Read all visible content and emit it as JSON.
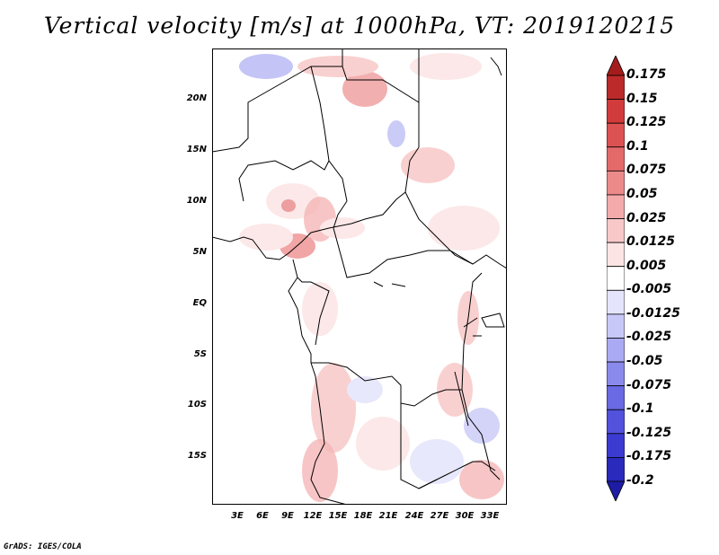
{
  "title": "Vertical velocity [m/s] at 1000hPa, VT: 2019120215",
  "credit": "GrADS: IGES/COLA",
  "lat_labels": [
    "20N",
    "15N",
    "10N",
    "5N",
    "EQ",
    "5S",
    "10S",
    "15S"
  ],
  "lon_labels": [
    "3E",
    "6E",
    "9E",
    "12E",
    "15E",
    "18E",
    "21E",
    "24E",
    "27E",
    "30E",
    "33E"
  ],
  "colorbar": {
    "labels": [
      "0.175",
      "0.15",
      "0.125",
      "0.1",
      "0.075",
      "0.05",
      "0.025",
      "0.0125",
      "0.005",
      "-0.005",
      "-0.0125",
      "-0.025",
      "-0.05",
      "-0.075",
      "-0.1",
      "-0.125",
      "-0.175",
      "-0.2"
    ],
    "colors": [
      "#a51c1c",
      "#bc2a2a",
      "#d23b3b",
      "#dc5252",
      "#e46a6a",
      "#ec8a8a",
      "#f4aaaa",
      "#f8c8c8",
      "#fce4e4",
      "#ffffff",
      "#e4e4fc",
      "#c8c8f8",
      "#aaaaf4",
      "#8a8aec",
      "#6a6ae4",
      "#5252dc",
      "#3b3bd2",
      "#2a2abc",
      "#1c1ca5"
    ]
  }
}
